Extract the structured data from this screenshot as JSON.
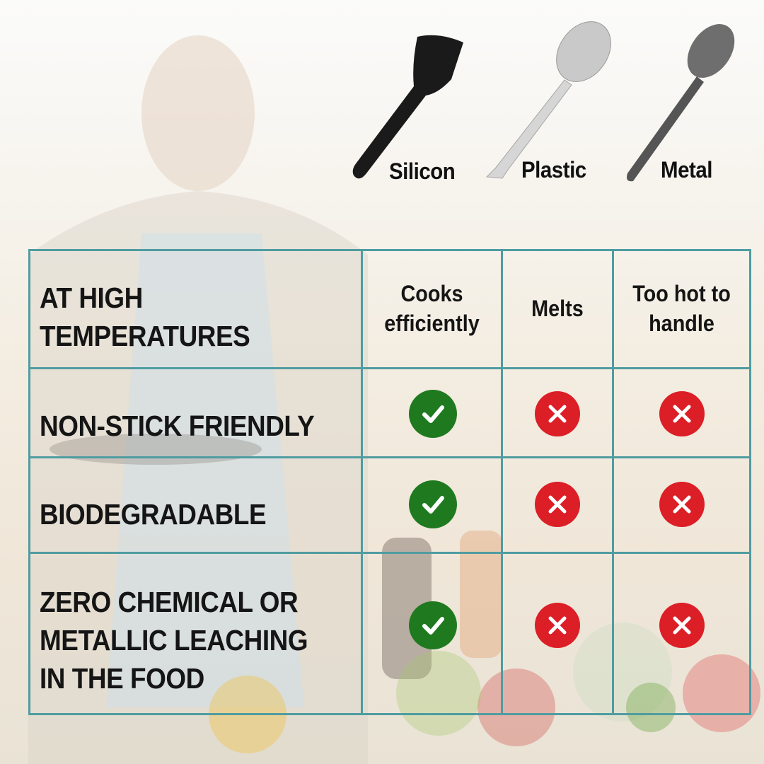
{
  "utensils": [
    {
      "label": "Silicon"
    },
    {
      "label": "Plastic"
    },
    {
      "label": "Metal"
    }
  ],
  "table": {
    "header_label": "AT HIGH TEMPERATURES",
    "columns": [
      "Cooks efficiently",
      "Melts",
      "Too hot to handle"
    ],
    "rows": [
      {
        "label": "NON-STICK FRIENDLY",
        "values": [
          "check",
          "cross",
          "cross"
        ]
      },
      {
        "label": "BIODEGRADABLE",
        "values": [
          "check",
          "cross",
          "cross"
        ]
      },
      {
        "label": "ZERO CHEMICAL OR METALLIC LEACHING IN THE FOOD",
        "values": [
          "check",
          "cross",
          "cross"
        ]
      }
    ]
  },
  "colors": {
    "grid": "#4f9ca1",
    "check": "#1f7a1f",
    "cross": "#dc1e26"
  },
  "icons": {
    "check": "check-icon",
    "cross": "cross-icon"
  }
}
